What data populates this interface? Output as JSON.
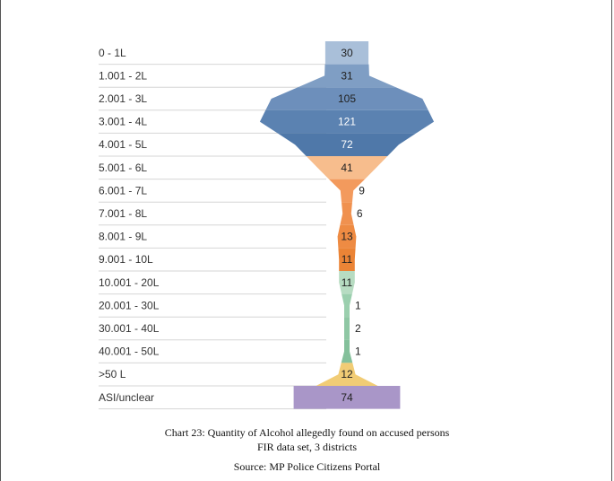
{
  "chart_data": {
    "type": "funnel",
    "categories": [
      "0 - 1L",
      "1.001 - 2L",
      "2.001 - 3L",
      "3.001 - 4L",
      "4.001 - 5L",
      "5.001 - 6L",
      "6.001 - 7L",
      "7.001 - 8L",
      "8.001 - 9L",
      "9.001 - 10L",
      "10.001 - 20L",
      "20.001 - 30L",
      "30.001 - 40L",
      "40.001 - 50L",
      ">50 L",
      "ASI/unclear"
    ],
    "values": [
      30,
      31,
      105,
      121,
      72,
      41,
      9,
      6,
      13,
      11,
      11,
      1,
      2,
      1,
      12,
      74
    ],
    "colors": [
      "#a9bfd9",
      "#7f9ec4",
      "#6d8fbb",
      "#5b82b1",
      "#4f78a9",
      "#f7bd8d",
      "#f39a5d",
      "#f0914f",
      "#ee8b43",
      "#eb8436",
      "#b7dcc2",
      "#9bcfae",
      "#8fc7a4",
      "#84c09b",
      "#f1cc75",
      "#a996c8"
    ],
    "label_colors": [
      "#222222",
      "#222222",
      "#222222",
      "#ffffff",
      "#ffffff",
      "#222222",
      "#222222",
      "#222222",
      "#222222",
      "#222222",
      "#222222",
      "#222222",
      "#222222",
      "#222222",
      "#222222",
      "#222222"
    ]
  },
  "caption": {
    "title": "Chart 23: Quantity of Alcohol allegedly found on accused persons",
    "subtitle": "FIR data set, 3 districts",
    "source": "Source: MP Police Citizens Portal"
  }
}
